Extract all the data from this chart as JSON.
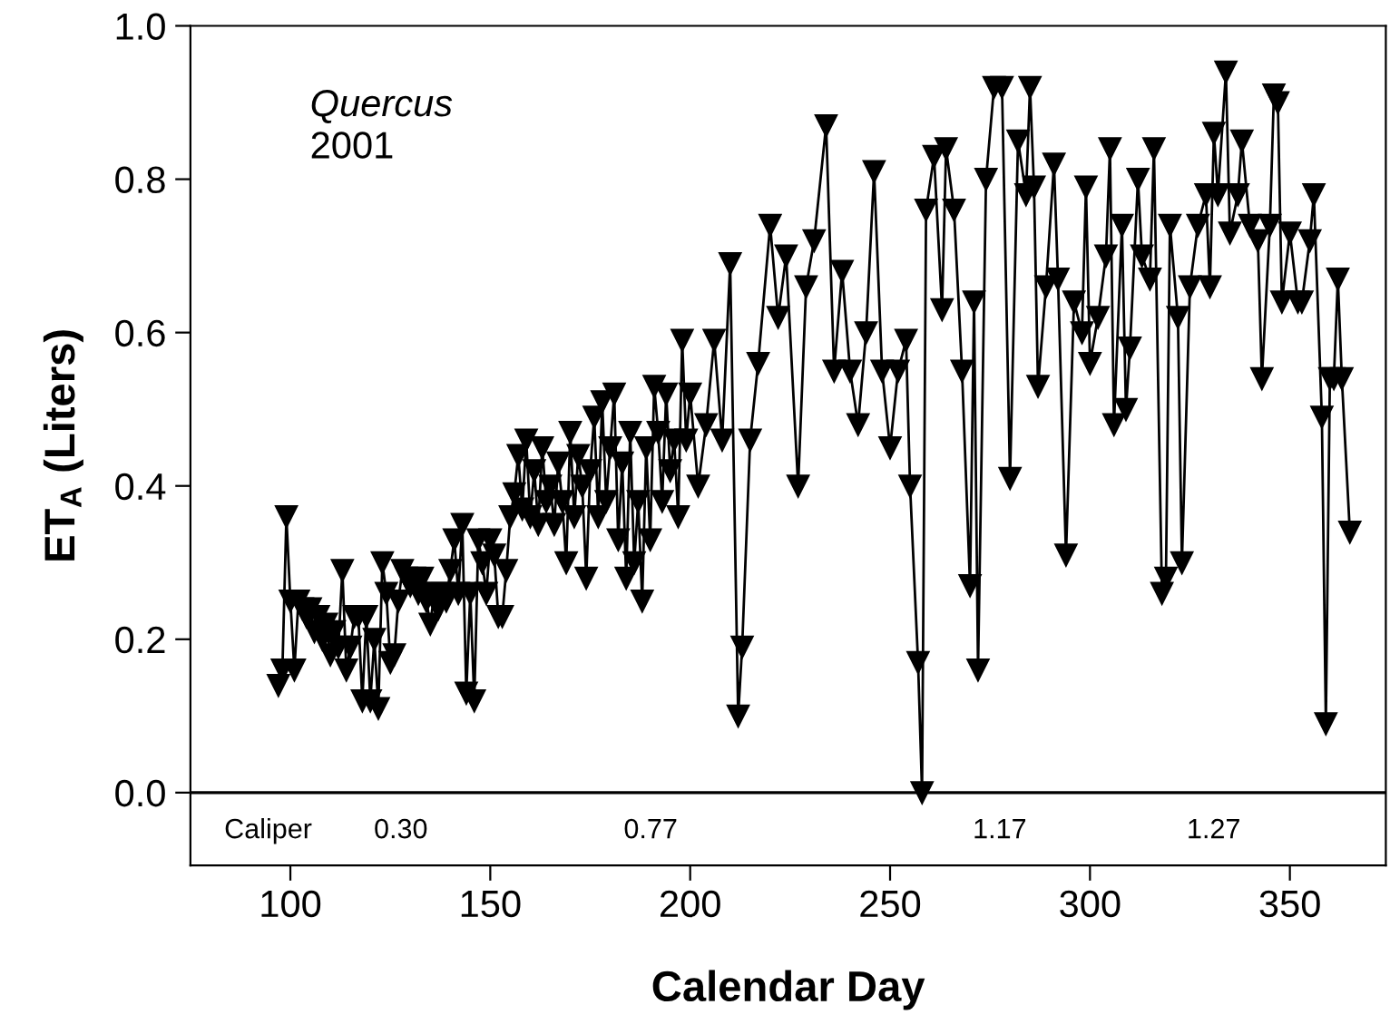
{
  "chart_data": {
    "type": "line",
    "xlabel": "Calendar Day",
    "ylabel": "ET$_{A}$ (Liters)",
    "xlim": [
      75,
      374
    ],
    "xticks": [
      100,
      150,
      200,
      250,
      300,
      350
    ],
    "ylim": [
      -0.095,
      1.0
    ],
    "yticks": [
      {
        "value": 0,
        "label": "0.0"
      },
      {
        "value": 0.2,
        "label": "0.2"
      },
      {
        "value": 0.4,
        "label": "0.4"
      },
      {
        "value": 0.6,
        "label": "0.6"
      },
      {
        "value": 0.8,
        "label": "0.8"
      },
      {
        "value": 1.0,
        "label": "1.0"
      }
    ],
    "grid": false,
    "marker": "triangle",
    "line_style": "solid",
    "ref_lines": [
      {
        "axis": "y",
        "value": 0,
        "color": "#000000"
      }
    ],
    "annotations": [
      "Quercus\n2001",
      "Caliper",
      "0.30",
      "0.77",
      "1.17",
      "1.27"
    ],
    "series": [
      {
        "color": "#000000",
        "x": [
          97,
          98,
          99,
          100,
          101,
          102,
          103,
          104,
          105,
          106,
          107,
          108,
          109,
          110,
          111,
          112,
          113,
          114,
          115,
          116,
          117,
          118,
          119,
          120,
          121,
          122,
          123,
          124,
          125,
          126,
          127,
          128,
          129,
          130,
          131,
          132,
          133,
          134,
          135,
          136,
          137,
          138,
          139,
          140,
          141,
          142,
          143,
          144,
          145,
          146,
          147,
          148,
          149,
          150,
          151,
          152,
          153,
          154,
          155,
          156,
          157,
          158,
          159,
          160,
          161,
          162,
          163,
          164,
          165,
          166,
          167,
          168,
          169,
          170,
          171,
          172,
          173,
          174,
          175,
          176,
          177,
          178,
          179,
          180,
          181,
          182,
          183,
          184,
          185,
          186,
          187,
          188,
          189,
          190,
          191,
          192,
          193,
          194,
          195,
          196,
          197,
          198,
          199,
          200,
          202,
          204,
          206,
          208,
          210,
          212,
          213,
          215,
          217,
          220,
          222,
          224,
          227,
          229,
          231,
          234,
          236,
          238,
          240,
          242,
          244,
          246,
          248,
          250,
          252,
          254,
          255,
          257,
          258,
          259,
          261,
          263,
          264,
          266,
          268,
          270,
          271,
          272,
          274,
          276,
          278,
          280,
          282,
          284,
          285,
          286,
          287,
          289,
          291,
          292,
          294,
          296,
          298,
          299,
          300,
          302,
          304,
          305,
          306,
          308,
          309,
          310,
          312,
          313,
          315,
          316,
          318,
          319,
          320,
          322,
          323,
          325,
          327,
          329,
          330,
          331,
          332,
          334,
          335,
          337,
          338,
          340,
          342,
          343,
          345,
          346,
          347,
          348,
          350,
          352,
          353,
          355,
          356,
          358,
          359,
          360,
          361,
          362,
          363,
          365
        ],
        "values": [
          0.14,
          0.16,
          0.36,
          0.25,
          0.16,
          0.25,
          0.24,
          0.23,
          0.24,
          0.21,
          0.23,
          0.2,
          0.22,
          0.18,
          0.21,
          0.19,
          0.29,
          0.16,
          0.19,
          0.23,
          0.23,
          0.12,
          0.23,
          0.12,
          0.2,
          0.11,
          0.3,
          0.26,
          0.17,
          0.18,
          0.25,
          0.29,
          0.28,
          0.27,
          0.28,
          0.26,
          0.28,
          0.25,
          0.22,
          0.26,
          0.24,
          0.26,
          0.25,
          0.29,
          0.33,
          0.26,
          0.35,
          0.13,
          0.26,
          0.12,
          0.33,
          0.3,
          0.26,
          0.33,
          0.31,
          0.23,
          0.23,
          0.29,
          0.36,
          0.39,
          0.44,
          0.37,
          0.46,
          0.36,
          0.42,
          0.35,
          0.45,
          0.38,
          0.4,
          0.35,
          0.43,
          0.38,
          0.3,
          0.47,
          0.36,
          0.44,
          0.4,
          0.28,
          0.42,
          0.49,
          0.36,
          0.51,
          0.38,
          0.45,
          0.52,
          0.33,
          0.43,
          0.28,
          0.47,
          0.3,
          0.38,
          0.25,
          0.45,
          0.33,
          0.53,
          0.47,
          0.38,
          0.52,
          0.42,
          0.46,
          0.36,
          0.59,
          0.46,
          0.52,
          0.4,
          0.48,
          0.59,
          0.46,
          0.69,
          0.1,
          0.19,
          0.46,
          0.56,
          0.74,
          0.62,
          0.7,
          0.4,
          0.66,
          0.72,
          0.87,
          0.55,
          0.68,
          0.55,
          0.48,
          0.6,
          0.81,
          0.55,
          0.45,
          0.55,
          0.59,
          0.4,
          0.17,
          0.0,
          0.76,
          0.83,
          0.63,
          0.84,
          0.76,
          0.55,
          0.27,
          0.64,
          0.16,
          0.8,
          0.92,
          0.92,
          0.41,
          0.85,
          0.78,
          0.92,
          0.79,
          0.53,
          0.66,
          0.82,
          0.67,
          0.31,
          0.64,
          0.6,
          0.79,
          0.56,
          0.62,
          0.7,
          0.84,
          0.48,
          0.74,
          0.5,
          0.58,
          0.8,
          0.7,
          0.67,
          0.84,
          0.26,
          0.28,
          0.74,
          0.62,
          0.3,
          0.66,
          0.74,
          0.78,
          0.66,
          0.86,
          0.78,
          0.94,
          0.73,
          0.78,
          0.85,
          0.74,
          0.72,
          0.54,
          0.74,
          0.91,
          0.9,
          0.64,
          0.73,
          0.64,
          0.64,
          0.72,
          0.78,
          0.49,
          0.09,
          0.54,
          0.54,
          0.67,
          0.54,
          0.34
        ]
      }
    ]
  }
}
